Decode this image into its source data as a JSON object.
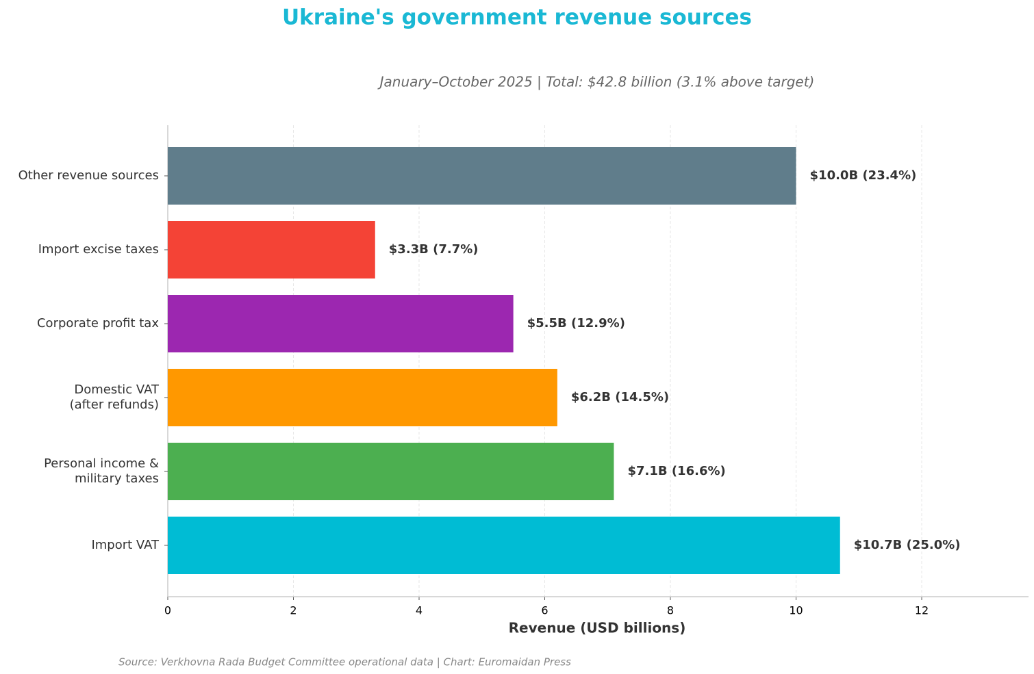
{
  "chart_data": {
    "type": "barh",
    "title": "Ukraine's government revenue sources",
    "subtitle": "January–October 2025 | Total: $42.8 billion (3.1% above target)",
    "x_label": "Revenue (USD billions)",
    "source": "Source: Verkhovna Rada Budget Committee operational data | Chart: Euromaidan Press",
    "categories": [
      "Import VAT",
      "Personal income &\nmilitary taxes",
      "Domestic VAT\n(after refunds)",
      "Corporate profit tax",
      "Import excise taxes",
      "Other revenue sources"
    ],
    "values": [
      10.7,
      7.1,
      6.2,
      5.5,
      3.3,
      10.0
    ],
    "value_labels": [
      "$10.7B (25.0%)",
      "$7.1B (16.6%)",
      "$6.2B (14.5%)",
      "$5.5B (12.9%)",
      "$3.3B (7.7%)",
      "$10.0B (23.4%)"
    ],
    "colors": [
      "#00bcd4",
      "#4caf50",
      "#ff9800",
      "#9c27b0",
      "#f44336",
      "#607d8b"
    ],
    "xlim": [
      0,
      13.7
    ],
    "xticks": [
      0,
      2,
      4,
      6,
      8,
      10,
      12
    ],
    "grid": true
  }
}
